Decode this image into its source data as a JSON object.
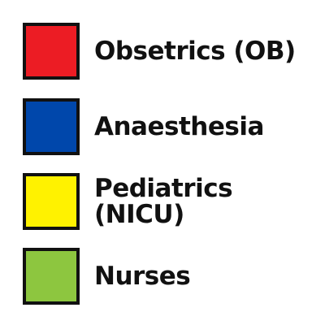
{
  "legend": {
    "items": [
      {
        "label_lines": [
          "Obsetrics (OB)"
        ],
        "color": "#ec1c24"
      },
      {
        "label_lines": [
          "Anaesthesia"
        ],
        "color": "#0047ab"
      },
      {
        "label_lines": [
          "Pediatrics",
          "(NICU)"
        ],
        "color": "#fff200"
      },
      {
        "label_lines": [
          "Nurses"
        ],
        "color": "#8dc63f"
      }
    ]
  }
}
